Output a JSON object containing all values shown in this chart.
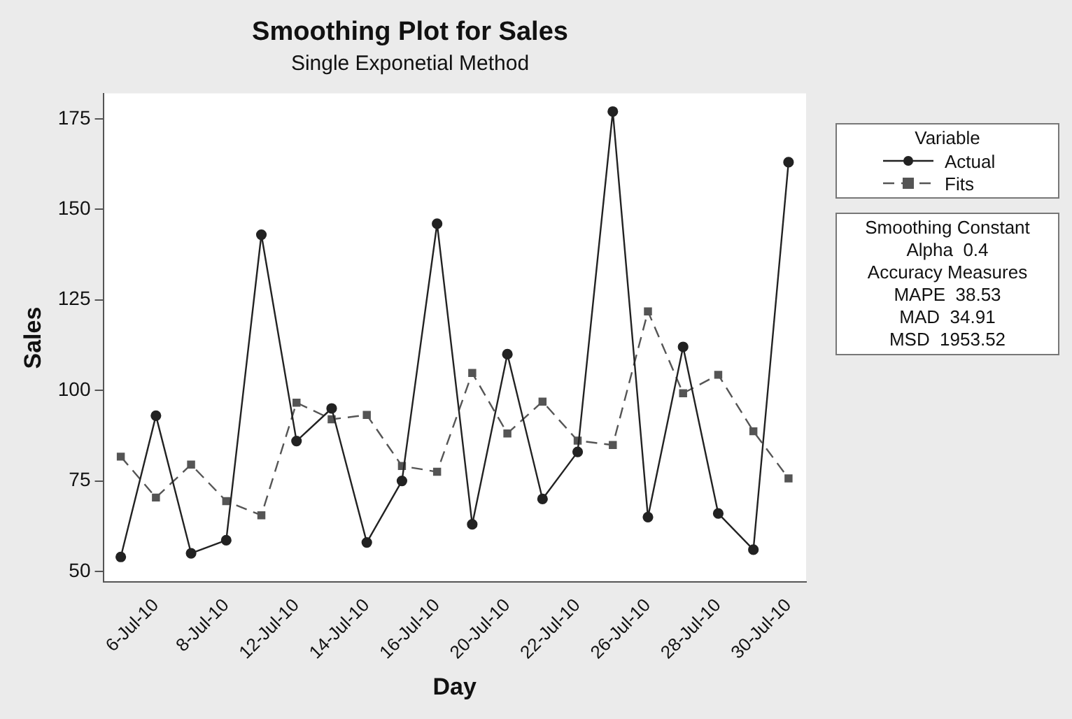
{
  "chart_data": {
    "type": "line",
    "title": "Smoothing Plot for Sales",
    "subtitle": "Single Exponetial Method",
    "xlabel": "Day",
    "ylabel": "Sales",
    "categories": [
      null,
      "6-Jul-10",
      null,
      "8-Jul-10",
      null,
      "12-Jul-10",
      null,
      "14-Jul-10",
      null,
      "16-Jul-10",
      null,
      "20-Jul-10",
      null,
      "22-Jul-10",
      null,
      "26-Jul-10",
      null,
      "28-Jul-10",
      null,
      "30-Jul-10"
    ],
    "series": [
      {
        "name": "Actual",
        "color": "#222222",
        "marker": "circle",
        "line_style": "solid",
        "values": [
          54,
          93,
          55,
          58.6,
          143,
          86,
          95,
          58,
          75,
          146,
          63,
          110,
          70,
          83,
          177,
          65,
          112,
          66,
          56,
          163
        ]
      },
      {
        "name": "Fits",
        "color": "#555555",
        "marker": "square",
        "line_style": "dashed",
        "values": [
          81.7,
          70.4,
          79.5,
          69.4,
          65.5,
          96.6,
          92,
          93.2,
          79.1,
          77.5,
          104.8,
          88.1,
          96.9,
          86.1,
          84.9,
          121.8,
          99.2,
          104.3,
          88.7,
          75.7
        ]
      }
    ],
    "legend": "top right",
    "legend_title": "Variable",
    "grid": false,
    "ylim": [
      47,
      182
    ],
    "yticks": [
      50,
      75,
      100,
      125,
      150,
      175
    ],
    "annotations": [
      "Smoothing Constant",
      "Alpha  0.4",
      "Accuracy Measures",
      "MAPE  38.53",
      "MAD  34.91",
      "MSD  1953.52"
    ]
  }
}
